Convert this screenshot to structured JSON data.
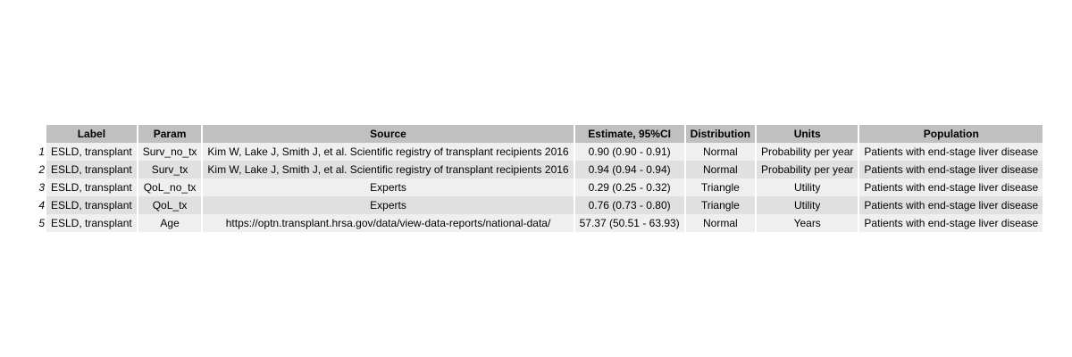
{
  "table": {
    "headers": [
      "Label",
      "Param",
      "Source",
      "Estimate, 95%CI",
      "Distribution",
      "Units",
      "Population"
    ],
    "rows": [
      {
        "num": "1",
        "label": "ESLD, transplant",
        "param": "Surv_no_tx",
        "source": "Kim W, Lake J, Smith J, et al. Scientific registry of transplant recipients 2016",
        "estimate": "0.90 (0.90 - 0.91)",
        "distribution": "Normal",
        "units": "Probability per year",
        "population": "Patients with end-stage liver disease"
      },
      {
        "num": "2",
        "label": "ESLD, transplant",
        "param": "Surv_tx",
        "source": "Kim W, Lake J, Smith J, et al. Scientific registry of transplant recipients 2016",
        "estimate": "0.94 (0.94 - 0.94)",
        "distribution": "Normal",
        "units": "Probability per year",
        "population": "Patients with end-stage liver disease"
      },
      {
        "num": "3",
        "label": "ESLD, transplant",
        "param": "QoL_no_tx",
        "source": "Experts",
        "estimate": "0.29 (0.25 - 0.32)",
        "distribution": "Triangle",
        "units": "Utility",
        "population": "Patients with end-stage liver disease"
      },
      {
        "num": "4",
        "label": "ESLD, transplant",
        "param": "QoL_tx",
        "source": "Experts",
        "estimate": "0.76 (0.73 - 0.80)",
        "distribution": "Triangle",
        "units": "Utility",
        "population": "Patients with end-stage liver disease"
      },
      {
        "num": "5",
        "label": "ESLD, transplant",
        "param": "Age",
        "source": "https://optn.transplant.hrsa.gov/data/view-data-reports/national-data/",
        "estimate": "57.37 (50.51 - 63.93)",
        "distribution": "Normal",
        "units": "Years",
        "population": "Patients with end-stage liver disease"
      }
    ]
  }
}
